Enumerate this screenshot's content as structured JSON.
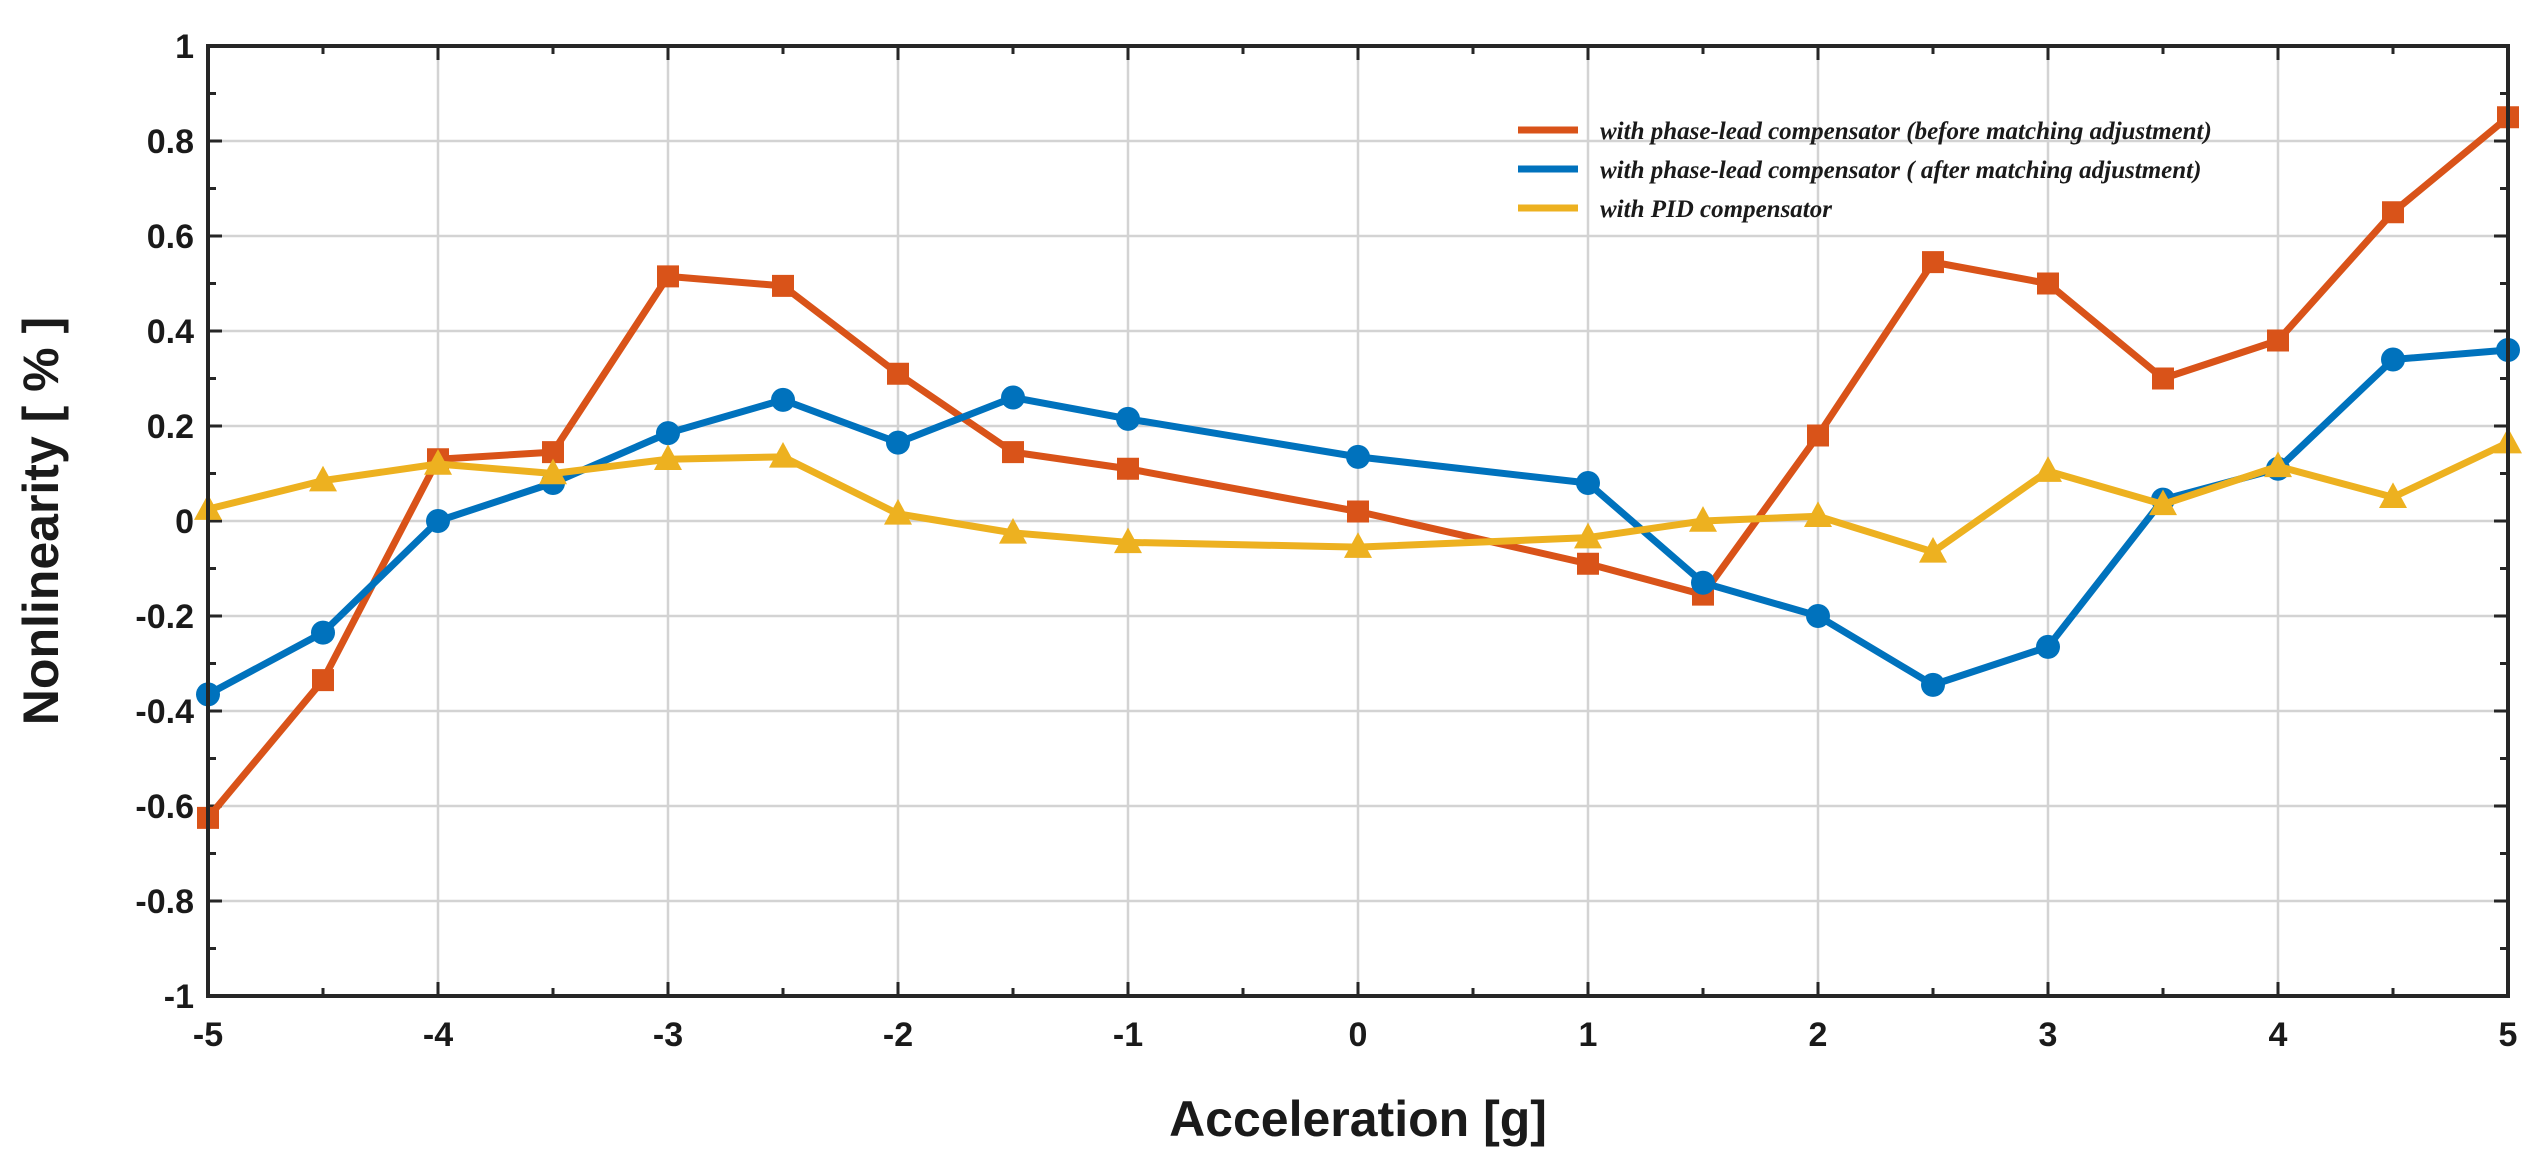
{
  "chart_data": {
    "type": "line",
    "title": "",
    "xlabel": "Acceleration [g]",
    "ylabel": "Nonlinearity [ % ]",
    "xlim": [
      -5,
      5
    ],
    "ylim": [
      -1,
      1
    ],
    "grid": true,
    "legend_position": "top-right",
    "x_ticks": [
      -5,
      -4,
      -3,
      -2,
      -1,
      0,
      1,
      2,
      3,
      4,
      5
    ],
    "x_tick_labels": [
      "-5",
      "-4",
      "-3",
      "-2",
      "-1",
      "0",
      "1",
      "2",
      "3",
      "4",
      "5"
    ],
    "y_ticks": [
      1,
      0.8,
      0.6,
      0.4,
      0.2,
      0,
      -0.2,
      -0.4,
      -0.6,
      -0.8,
      -1
    ],
    "y_tick_labels": [
      "1",
      "0.8",
      "0.6",
      "0.4",
      "0.2",
      "0",
      "-0.2",
      "-0.4",
      "-0.6",
      "-0.8",
      "-1"
    ],
    "series": [
      {
        "name": " with phase-lead compensator (before matching adjustment)",
        "color": "#D95319",
        "marker": "square",
        "points": [
          {
            "x": -5,
            "y": -0.625
          },
          {
            "x": -4.5,
            "y": -0.335
          },
          {
            "x": -4,
            "y": 0.13
          },
          {
            "x": -3.5,
            "y": 0.145
          },
          {
            "x": -3,
            "y": 0.515
          },
          {
            "x": -2.5,
            "y": 0.495
          },
          {
            "x": -2,
            "y": 0.31
          },
          {
            "x": -1.5,
            "y": 0.145
          },
          {
            "x": -1,
            "y": 0.11
          },
          {
            "x": 0,
            "y": 0.02
          },
          {
            "x": 1,
            "y": -0.09
          },
          {
            "x": 1.5,
            "y": -0.155
          },
          {
            "x": 2,
            "y": 0.18
          },
          {
            "x": 2.5,
            "y": 0.545
          },
          {
            "x": 3,
            "y": 0.5
          },
          {
            "x": 3.5,
            "y": 0.3
          },
          {
            "x": 4,
            "y": 0.38
          },
          {
            "x": 4.5,
            "y": 0.65
          },
          {
            "x": 5,
            "y": 0.85
          }
        ]
      },
      {
        "name": "with phase-lead compensator ( after matching adjustment)",
        "color": "#0072BD",
        "marker": "circle",
        "points": [
          {
            "x": -5,
            "y": -0.365
          },
          {
            "x": -4.5,
            "y": -0.235
          },
          {
            "x": -4,
            "y": 0.0
          },
          {
            "x": -3.5,
            "y": 0.08
          },
          {
            "x": -3,
            "y": 0.185
          },
          {
            "x": -2.5,
            "y": 0.255
          },
          {
            "x": -2,
            "y": 0.165
          },
          {
            "x": -1.5,
            "y": 0.26
          },
          {
            "x": -1,
            "y": 0.215
          },
          {
            "x": 0,
            "y": 0.135
          },
          {
            "x": 1,
            "y": 0.08
          },
          {
            "x": 1.5,
            "y": -0.13
          },
          {
            "x": 2,
            "y": -0.2
          },
          {
            "x": 2.5,
            "y": -0.345
          },
          {
            "x": 3,
            "y": -0.265
          },
          {
            "x": 3.5,
            "y": 0.045
          },
          {
            "x": 4,
            "y": 0.11
          },
          {
            "x": 4.5,
            "y": 0.34
          },
          {
            "x": 5,
            "y": 0.36
          }
        ]
      },
      {
        "name": "with PID compensator",
        "color": "#EDB120",
        "marker": "triangle",
        "points": [
          {
            "x": -5,
            "y": 0.025
          },
          {
            "x": -4.5,
            "y": 0.085
          },
          {
            "x": -4,
            "y": 0.12
          },
          {
            "x": -3.5,
            "y": 0.1
          },
          {
            "x": -3,
            "y": 0.13
          },
          {
            "x": -2.5,
            "y": 0.135
          },
          {
            "x": -2,
            "y": 0.015
          },
          {
            "x": -1.5,
            "y": -0.025
          },
          {
            "x": -1,
            "y": -0.045
          },
          {
            "x": 0,
            "y": -0.055
          },
          {
            "x": 1,
            "y": -0.035
          },
          {
            "x": 1.5,
            "y": 0.0
          },
          {
            "x": 2,
            "y": 0.01
          },
          {
            "x": 2.5,
            "y": -0.065
          },
          {
            "x": 3,
            "y": 0.105
          },
          {
            "x": 3.5,
            "y": 0.035
          },
          {
            "x": 4,
            "y": 0.115
          },
          {
            "x": 4.5,
            "y": 0.05
          },
          {
            "x": 5,
            "y": 0.165
          }
        ]
      }
    ]
  }
}
